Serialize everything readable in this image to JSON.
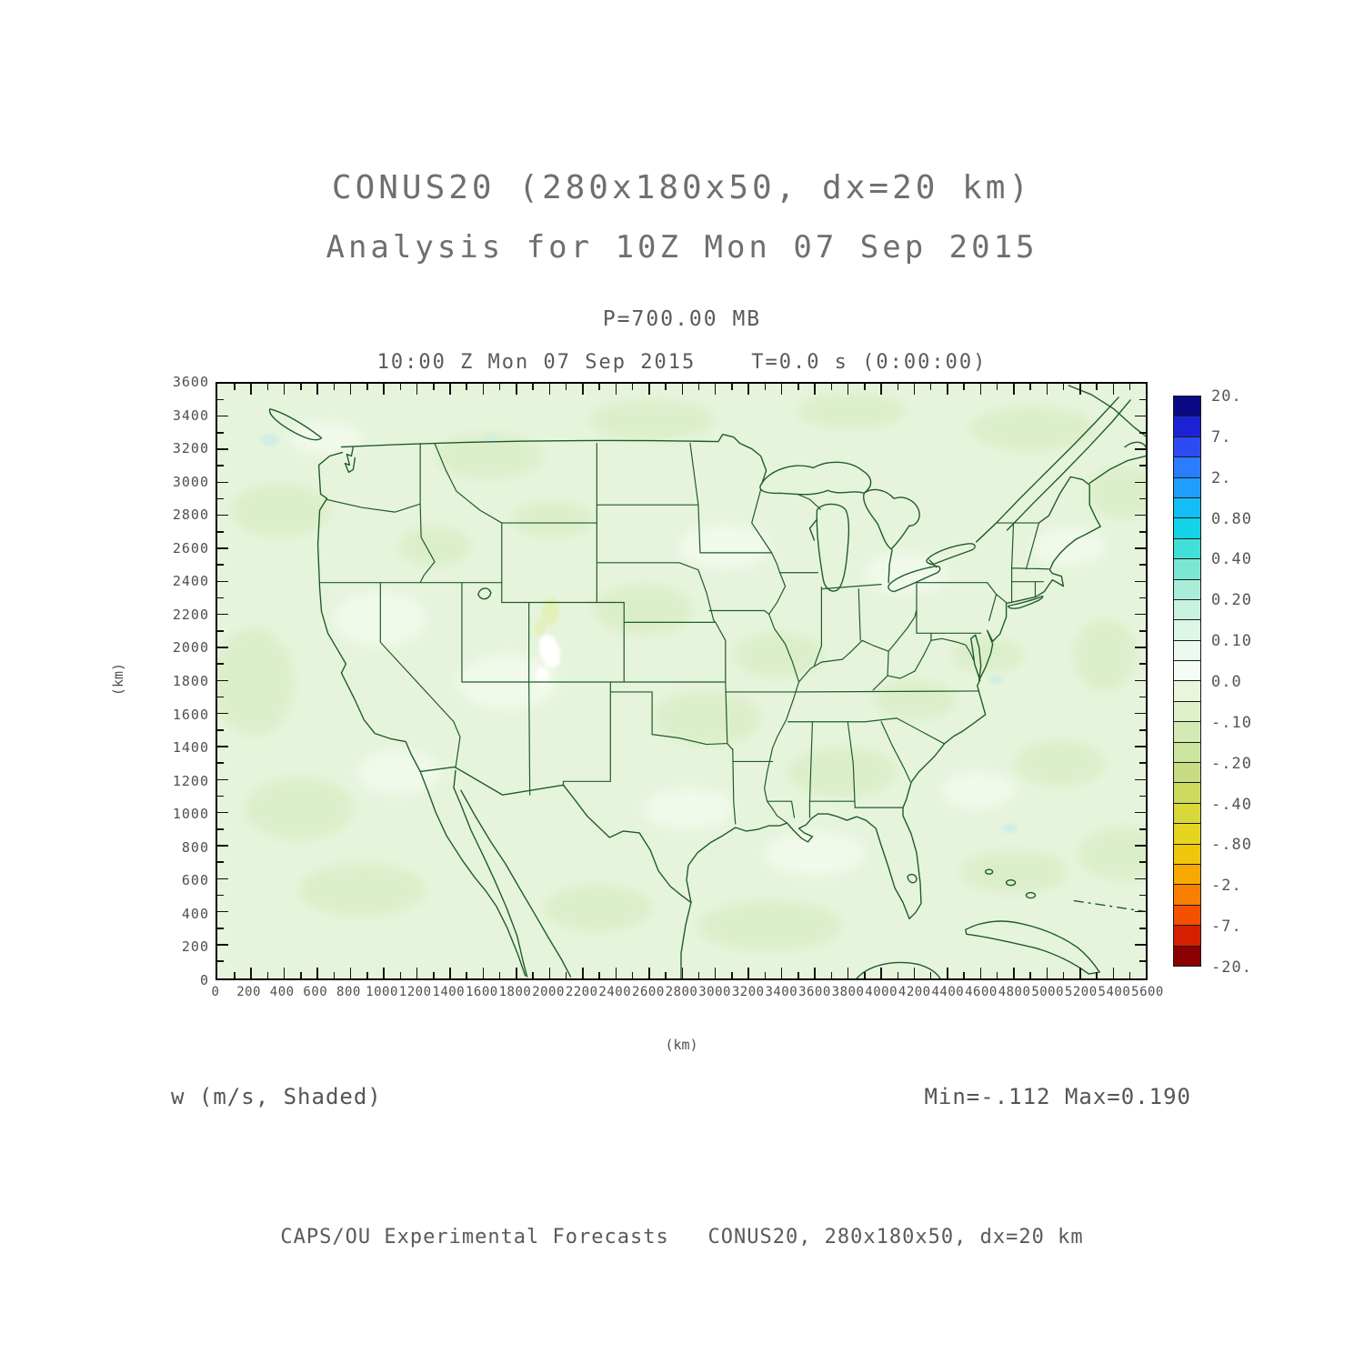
{
  "header": {
    "title_line1": "CONUS20 (280x180x50, dx=20 km)",
    "title_line2": "Analysis for 10Z Mon 07 Sep 2015",
    "level_label": "P=700.00 MB",
    "time_label": "10:00 Z Mon 07 Sep 2015    T=0.0 s (0:00:00)"
  },
  "chart_data": {
    "type": "heatmap",
    "subtype": "shaded-contour-map",
    "field": "w",
    "units": "m/s",
    "field_label": "w (m/s, Shaded)",
    "stats_label": "Min=-.112 Max=0.190",
    "min_value": -0.112,
    "max_value": 0.19,
    "pressure_level_mb": 700.0,
    "valid_time": "10:00 Z Mon 07 Sep 2015",
    "forecast_time_s": "T=0.0 s (0:00:00)",
    "grid": "280x180x50, dx=20 km",
    "map_overlay": "US state boundaries, North America coastlines",
    "x_axis": {
      "label": "(km)",
      "min": 0,
      "max": 5600,
      "tick_interval": 200,
      "ticks": [
        "0",
        "200",
        "400",
        "600",
        "800",
        "1000",
        "1200",
        "1400",
        "1600",
        "1800",
        "2000",
        "2200",
        "2400",
        "2600",
        "2800",
        "3000",
        "3200",
        "3400",
        "3600",
        "3800",
        "4000",
        "4200",
        "4400",
        "4600",
        "4800",
        "5000",
        "5200",
        "5400",
        "5600"
      ]
    },
    "y_axis": {
      "label": "(km)",
      "min": 0,
      "max": 3600,
      "tick_interval": 200,
      "ticks": [
        "0",
        "200",
        "400",
        "600",
        "800",
        "1000",
        "1200",
        "1400",
        "1600",
        "1800",
        "2000",
        "2200",
        "2400",
        "2600",
        "2800",
        "3000",
        "3200",
        "3400",
        "3600"
      ]
    },
    "colorbar": {
      "labels": [
        "20.",
        "7.",
        "2.",
        "0.80",
        "0.40",
        "0.20",
        "0.10",
        "0.0",
        "-.10",
        "-.20",
        "-.40",
        "-.80",
        "-2.",
        "-7.",
        "-20."
      ],
      "levels": [
        20,
        7,
        2,
        0.8,
        0.4,
        0.2,
        0.1,
        0.0,
        -0.1,
        -0.2,
        -0.4,
        -0.8,
        -2,
        -7,
        -20
      ],
      "colors": [
        "#0a0a86",
        "#1d23d5",
        "#2b4cf2",
        "#2c7cff",
        "#209eff",
        "#14bef4",
        "#15d3e6",
        "#40e0d9",
        "#7be7d2",
        "#a9edd9",
        "#c9f2df",
        "#dcf6e7",
        "#eafaef",
        "#f4fcf4",
        "#e9f6dc",
        "#def1ca",
        "#d3eab6",
        "#cbe49f",
        "#c8dc84",
        "#cdd95f",
        "#d8d83a",
        "#e6d520",
        "#eec60c",
        "#f8a802",
        "#f87f00",
        "#f35000",
        "#d42000",
        "#8b0000"
      ]
    },
    "map_palette": {
      "field_base": "#e7f4dc",
      "field_darker": "#d9edc6",
      "field_lighter": "#f2faec",
      "field_cyan": "#cfeee6",
      "field_yellow": "#e4f0b6",
      "boundary_line": "#1e5c2a"
    }
  },
  "footer": {
    "credit": "CAPS/OU Experimental Forecasts   CONUS20, 280x180x50, dx=20 km"
  }
}
